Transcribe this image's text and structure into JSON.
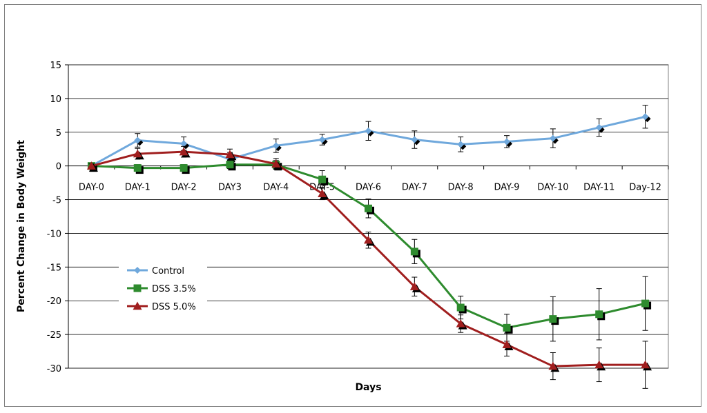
{
  "chart_data": {
    "type": "line",
    "title": "",
    "xlabel": "Days",
    "ylabel": "Percent Change in Body Weight",
    "categories": [
      "DAY-0",
      "DAY-1",
      "DAY-2",
      "DAY3",
      "DAY-4",
      "DAY-5",
      "DAY-6",
      "DAY-7",
      "DAY-8",
      "DAY-9",
      "DAY-10",
      "DAY-11",
      "Day-12"
    ],
    "ylim": [
      -30,
      15
    ],
    "yticks": [
      15,
      10,
      5,
      0,
      -5,
      -10,
      -15,
      -20,
      -25,
      -30
    ],
    "grid": true,
    "legend_position": "bottom-left",
    "series": [
      {
        "name": "Control",
        "color": "#6fa8dc",
        "marker": "diamond",
        "values": [
          0,
          3.8,
          3.3,
          1.0,
          3.0,
          3.9,
          5.2,
          3.9,
          3.2,
          3.6,
          4.1,
          5.7,
          7.3
        ],
        "errors": [
          0.3,
          1.0,
          1.0,
          1.0,
          1.0,
          0.8,
          1.4,
          1.3,
          1.1,
          0.9,
          1.4,
          1.3,
          1.7
        ]
      },
      {
        "name": "DSS 3.5%",
        "color": "#2e8b2e",
        "marker": "square",
        "values": [
          0,
          -0.3,
          -0.3,
          0.2,
          0.2,
          -2.0,
          -6.3,
          -12.7,
          -21.0,
          -24.0,
          -22.7,
          -22.0,
          -20.4
        ],
        "errors": [
          0.4,
          0.5,
          0.5,
          0.6,
          0.6,
          1.3,
          1.4,
          1.8,
          1.7,
          2.0,
          3.3,
          3.8,
          4.0
        ]
      },
      {
        "name": "DSS 5.0%",
        "color": "#a01e1e",
        "marker": "triangle",
        "values": [
          0,
          1.8,
          2.1,
          1.7,
          0.3,
          -4.1,
          -11.0,
          -17.9,
          -23.4,
          -26.5,
          -29.7,
          -29.5,
          -29.5
        ],
        "errors": [
          0.3,
          0.8,
          0.8,
          0.8,
          0.8,
          0.9,
          1.2,
          1.4,
          1.3,
          1.7,
          2.0,
          2.5,
          3.5
        ]
      }
    ]
  }
}
